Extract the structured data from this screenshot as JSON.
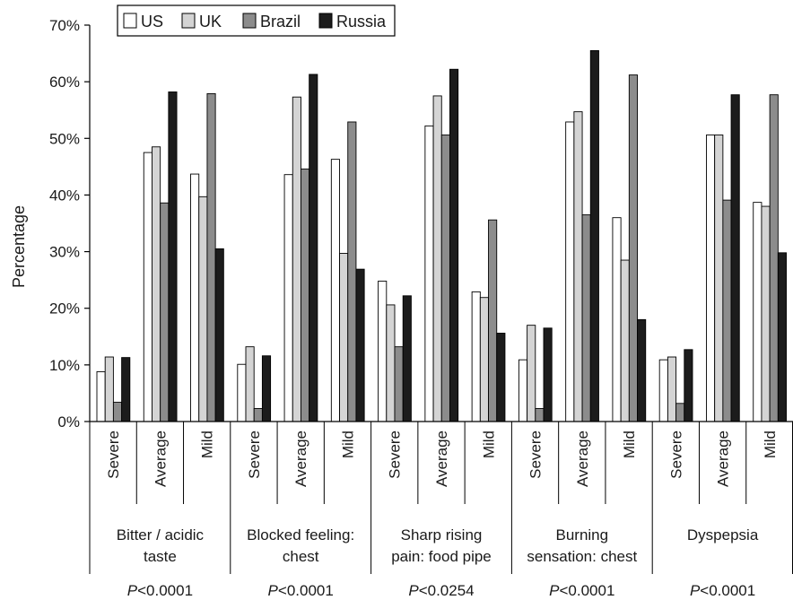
{
  "chart_data": {
    "type": "bar",
    "title": "",
    "ylabel": "Percentage",
    "ylim": [
      0,
      70
    ],
    "yticks": [
      0,
      10,
      20,
      30,
      40,
      50,
      60,
      70
    ],
    "ytick_labels": [
      "0%",
      "10%",
      "20%",
      "30%",
      "40%",
      "50%",
      "60%",
      "70%"
    ],
    "grid": false,
    "legend_position": "top-left",
    "colors": {
      "US": "#ffffff",
      "UK": "#d4d4d4",
      "Brazil": "#8c8c8c",
      "Russia": "#1c1c1c"
    },
    "series_names": [
      "US",
      "UK",
      "Brazil",
      "Russia"
    ],
    "groups": [
      {
        "label_lines": [
          "Bitter / acidic",
          "taste"
        ],
        "p_prefix": "P",
        "p_value": "<0.0001",
        "subgroups": [
          {
            "label": "Severe",
            "values": [
              8.8,
              11.4,
              3.4,
              11.3
            ]
          },
          {
            "label": "Average",
            "values": [
              47.5,
              48.5,
              38.6,
              58.2
            ]
          },
          {
            "label": "Mild",
            "values": [
              43.7,
              39.7,
              57.9,
              30.5
            ]
          }
        ]
      },
      {
        "label_lines": [
          "Blocked feeling:",
          "chest"
        ],
        "p_prefix": "P",
        "p_value": "<0.0001",
        "subgroups": [
          {
            "label": "Severe",
            "values": [
              10.1,
              13.2,
              2.3,
              11.6
            ]
          },
          {
            "label": "Average",
            "values": [
              43.6,
              57.3,
              44.6,
              61.3
            ]
          },
          {
            "label": "Mild",
            "values": [
              46.3,
              29.7,
              52.9,
              26.9
            ]
          }
        ]
      },
      {
        "label_lines": [
          "Sharp rising",
          "pain: food pipe"
        ],
        "p_prefix": "P",
        "p_value": "<0.0254",
        "subgroups": [
          {
            "label": "Severe",
            "values": [
              24.8,
              20.6,
              13.2,
              22.2
            ]
          },
          {
            "label": "Average",
            "values": [
              52.2,
              57.5,
              50.6,
              62.2
            ]
          },
          {
            "label": "Mild",
            "values": [
              22.9,
              21.9,
              35.6,
              15.6
            ]
          }
        ]
      },
      {
        "label_lines": [
          "Burning",
          "sensation: chest"
        ],
        "p_prefix": "P",
        "p_value": "<0.0001",
        "subgroups": [
          {
            "label": "Severe",
            "values": [
              10.9,
              17.0,
              2.3,
              16.5
            ]
          },
          {
            "label": "Average",
            "values": [
              52.9,
              54.7,
              36.5,
              65.5
            ]
          },
          {
            "label": "Mild",
            "values": [
              36.0,
              28.5,
              61.2,
              18.0
            ]
          }
        ]
      },
      {
        "label_lines": [
          "Dyspepsia"
        ],
        "p_prefix": "P",
        "p_value": "<0.0001",
        "subgroups": [
          {
            "label": "Severe",
            "values": [
              10.9,
              11.4,
              3.2,
              12.7
            ]
          },
          {
            "label": "Average",
            "values": [
              50.6,
              50.6,
              39.1,
              57.7
            ]
          },
          {
            "label": "Mild",
            "values": [
              38.7,
              38.0,
              57.7,
              29.8
            ]
          }
        ]
      }
    ]
  }
}
